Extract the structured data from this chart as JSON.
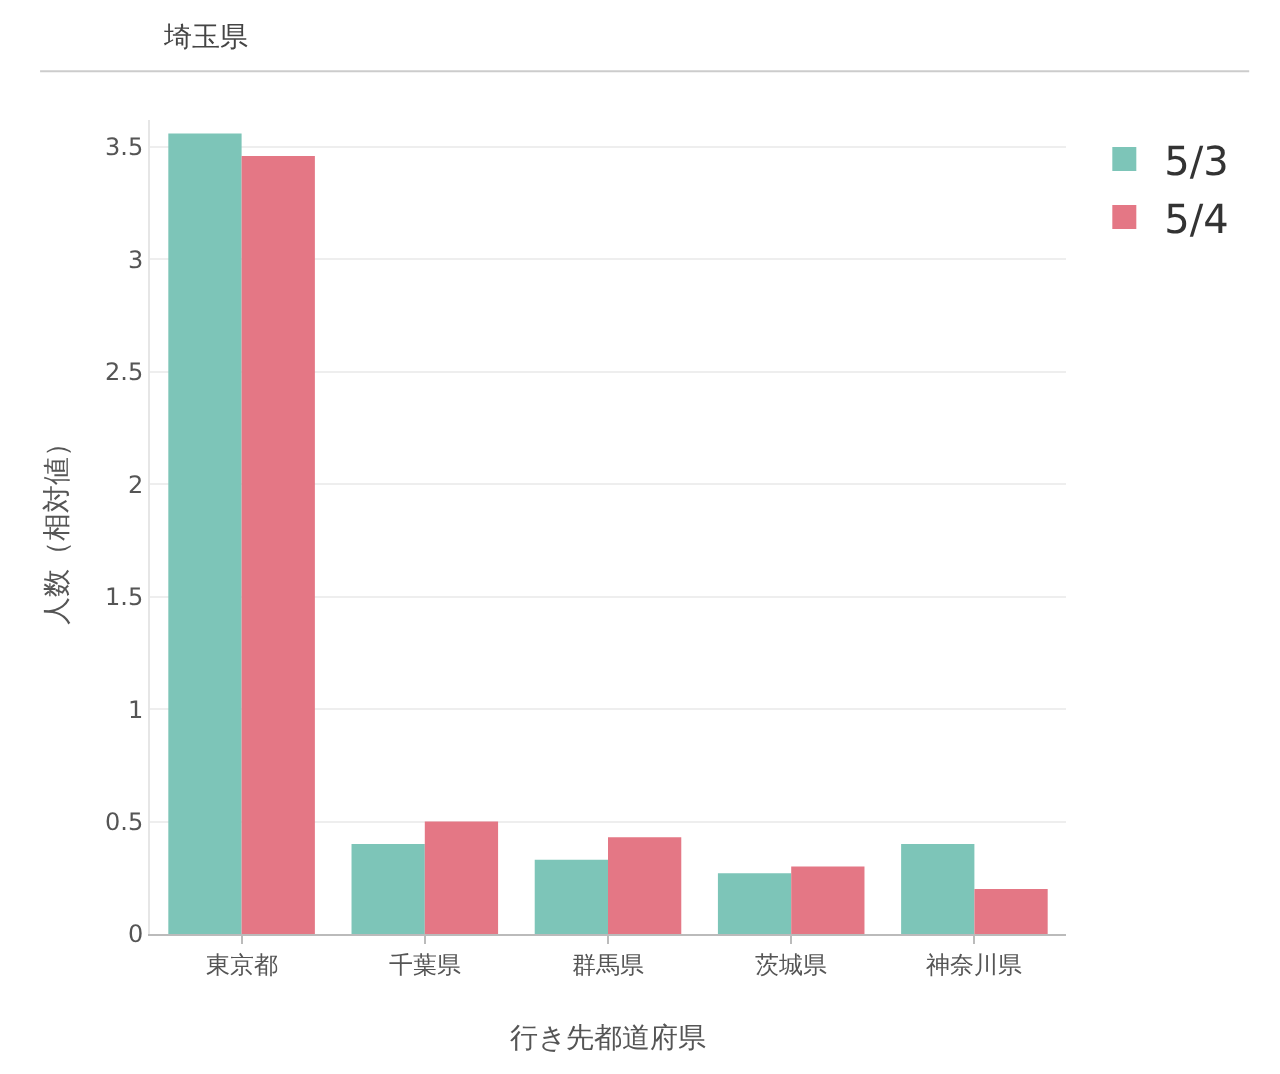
{
  "chart_data": {
    "type": "bar",
    "title": "埼玉県",
    "xlabel": "行き先都道府県",
    "ylabel": "人数（相対値）",
    "categories": [
      "東京都",
      "千葉県",
      "群馬県",
      "茨城県",
      "神奈川県"
    ],
    "series": [
      {
        "name": "5/3",
        "color": "#7dc5b8",
        "values": [
          3.56,
          0.4,
          0.33,
          0.27,
          0.4
        ]
      },
      {
        "name": "5/4",
        "color": "#e47785",
        "values": [
          3.46,
          0.5,
          0.43,
          0.3,
          0.2
        ]
      }
    ],
    "ylim": [
      0,
      3.62
    ],
    "yticks": [
      0,
      0.5,
      1,
      1.5,
      2,
      2.5,
      3,
      3.5
    ],
    "grid": "y",
    "legend": "top right"
  }
}
